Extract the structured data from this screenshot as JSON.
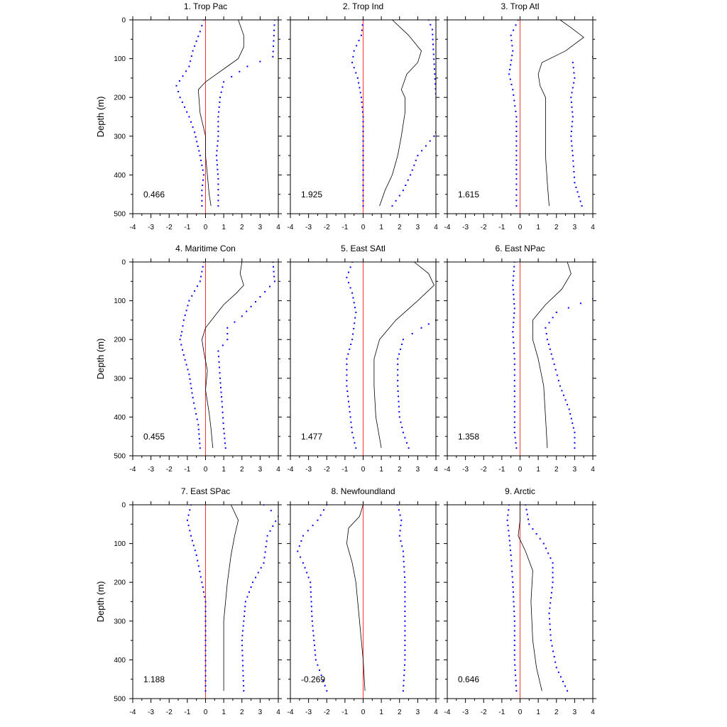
{
  "figure": {
    "ylabel": "Depth (m)",
    "xlim": [
      -4,
      4
    ],
    "ylim": [
      0,
      500
    ],
    "x_ticks": [
      "-4",
      "-3",
      "-2",
      "-1",
      "0",
      "1",
      "2",
      "3",
      "4"
    ],
    "y_ticks": [
      "0",
      "100",
      "200",
      "300",
      "400",
      "500"
    ],
    "colors": {
      "mean": "#000000",
      "bounds": "#0000ff",
      "zero": "#ff0000",
      "axes": "#000000"
    }
  },
  "chart_data": [
    {
      "type": "line",
      "title": "1. Trop Pac",
      "value_label": "0.466",
      "xlabel": "",
      "ylabel": "Depth (m)",
      "xlim": [
        -4,
        4
      ],
      "ylim": [
        0,
        500
      ],
      "y_reversed": true,
      "mean": {
        "x": [
          1.8,
          2.1,
          2.1,
          1.8,
          1.2,
          0.6,
          0.0,
          -0.4,
          -0.3,
          0.0,
          0.0,
          0.1,
          0.2,
          0.3
        ],
        "y": [
          0,
          40,
          70,
          100,
          120,
          140,
          160,
          180,
          240,
          300,
          350,
          400,
          450,
          480
        ]
      },
      "lower": {
        "x": [
          -0.1,
          -0.3,
          -0.7,
          -0.9,
          -1.6,
          -1.4,
          -0.9,
          -0.6,
          -0.3,
          -0.1,
          -0.2,
          -0.2
        ],
        "y": [
          0,
          30,
          80,
          120,
          170,
          200,
          250,
          290,
          350,
          400,
          440,
          480
        ]
      },
      "upper": {
        "x": [
          3.8,
          3.7,
          2.3,
          1.0,
          0.8,
          0.7,
          0.7,
          0.6,
          0.7,
          0.7
        ],
        "y": [
          0,
          95,
          120,
          160,
          200,
          250,
          300,
          350,
          410,
          480
        ]
      }
    },
    {
      "type": "line",
      "title": "2. Trop Ind",
      "value_label": "1.925",
      "xlabel": "",
      "ylabel": "Depth (m)",
      "xlim": [
        -4,
        4
      ],
      "ylim": [
        0,
        500
      ],
      "y_reversed": true,
      "mean": {
        "x": [
          1.6,
          2.5,
          3.2,
          3.0,
          2.4,
          2.1,
          2.3,
          2.3,
          2.1,
          1.9,
          1.6,
          1.2,
          0.9
        ],
        "y": [
          0,
          40,
          80,
          110,
          140,
          180,
          200,
          240,
          300,
          350,
          400,
          440,
          480
        ]
      },
      "lower": {
        "x": [
          0.0,
          -0.1,
          -0.5,
          -0.6,
          -0.3,
          -0.1,
          0.0,
          0.0,
          0.0,
          0.0,
          0.0
        ],
        "y": [
          0,
          40,
          80,
          110,
          150,
          200,
          250,
          300,
          350,
          400,
          480
        ]
      },
      "upper": {
        "x": [
          3.6,
          3.8,
          4.1,
          3.9,
          3.0,
          2.6,
          2.2,
          1.6
        ],
        "y": [
          0,
          25,
          280,
          300,
          350,
          400,
          440,
          480
        ]
      }
    },
    {
      "type": "line",
      "title": "3. Trop Atl",
      "value_label": "1.615",
      "xlabel": "",
      "ylabel": "Depth (m)",
      "xlim": [
        -4,
        4
      ],
      "ylim": [
        0,
        500
      ],
      "y_reversed": true,
      "mean": {
        "x": [
          2.2,
          2.8,
          3.5,
          2.5,
          1.2,
          1.0,
          1.1,
          1.4,
          1.4,
          1.4,
          1.4,
          1.5,
          1.6
        ],
        "y": [
          0,
          20,
          45,
          80,
          110,
          140,
          170,
          200,
          250,
          300,
          350,
          420,
          480
        ]
      },
      "lower": {
        "x": [
          -0.1,
          -0.5,
          -0.4,
          -0.6,
          -0.4,
          -0.2,
          -0.2,
          -0.2,
          -0.2,
          -0.2
        ],
        "y": [
          0,
          40,
          80,
          140,
          180,
          250,
          300,
          350,
          410,
          480
        ]
      },
      "upper": {
        "x": [
          4.0,
          2.9,
          3.0,
          2.8,
          2.9,
          2.8,
          2.9,
          3.0,
          3.4
        ],
        "y": [
          95,
          110,
          150,
          200,
          250,
          300,
          350,
          420,
          480
        ]
      }
    },
    {
      "type": "line",
      "title": "4. Maritime Con",
      "value_label": "0.455",
      "xlabel": "",
      "ylabel": "Depth (m)",
      "xlim": [
        -4,
        4
      ],
      "ylim": [
        0,
        500
      ],
      "y_reversed": true,
      "mean": {
        "x": [
          2.0,
          1.9,
          2.1,
          1.7,
          1.0,
          0.5,
          0.0,
          -0.2,
          -0.1,
          0.1,
          0.0,
          0.2,
          0.3,
          0.4
        ],
        "y": [
          0,
          30,
          60,
          80,
          110,
          140,
          170,
          200,
          230,
          280,
          330,
          390,
          430,
          480
        ]
      },
      "lower": {
        "x": [
          -0.1,
          -0.3,
          -0.9,
          -1.2,
          -1.3,
          -1.4,
          -1.2,
          -0.9,
          -0.7,
          -0.4,
          -0.3
        ],
        "y": [
          0,
          50,
          100,
          150,
          180,
          200,
          240,
          290,
          350,
          420,
          480
        ]
      },
      "upper": {
        "x": [
          3.7,
          3.8,
          3.0,
          2.0,
          1.2,
          1.2,
          0.7,
          0.8,
          0.9,
          1.0,
          1.1
        ],
        "y": [
          0,
          50,
          90,
          140,
          170,
          200,
          230,
          300,
          360,
          430,
          480
        ]
      }
    },
    {
      "type": "line",
      "title": "5. East SAtl",
      "value_label": "1.477",
      "xlabel": "",
      "ylabel": "Depth (m)",
      "xlim": [
        -4,
        4
      ],
      "ylim": [
        0,
        500
      ],
      "y_reversed": true,
      "mean": {
        "x": [
          2.8,
          3.6,
          3.9,
          3.0,
          1.8,
          0.9,
          0.6,
          0.6,
          0.7,
          1.0
        ],
        "y": [
          0,
          30,
          60,
          100,
          150,
          200,
          250,
          320,
          400,
          480
        ]
      },
      "lower": {
        "x": [
          -0.6,
          -0.9,
          -0.6,
          -0.4,
          -0.6,
          -0.9,
          -0.9,
          -0.7,
          -0.6,
          -0.4
        ],
        "y": [
          0,
          40,
          80,
          130,
          200,
          250,
          320,
          400,
          440,
          480
        ]
      },
      "upper": {
        "x": [
          4.0,
          3.2,
          2.2,
          1.9,
          1.9,
          2.0,
          2.2,
          2.5
        ],
        "y": [
          150,
          170,
          200,
          250,
          320,
          400,
          440,
          480
        ]
      }
    },
    {
      "type": "line",
      "title": "6. East NPac",
      "value_label": "1.358",
      "xlabel": "",
      "ylabel": "Depth (m)",
      "xlim": [
        -4,
        4
      ],
      "ylim": [
        0,
        500
      ],
      "y_reversed": true,
      "mean": {
        "x": [
          2.6,
          2.8,
          2.3,
          1.4,
          0.7,
          0.7,
          1.0,
          1.3,
          1.4,
          1.5
        ],
        "y": [
          0,
          30,
          70,
          110,
          150,
          200,
          250,
          320,
          400,
          480
        ]
      },
      "lower": {
        "x": [
          -0.3,
          -0.4,
          -0.3,
          -0.4,
          -0.3,
          -0.3,
          -0.3,
          -0.3,
          -0.2
        ],
        "y": [
          0,
          60,
          120,
          180,
          250,
          320,
          400,
          440,
          480
        ]
      },
      "upper": {
        "x": [
          4.0,
          2.0,
          1.4,
          1.5,
          1.8,
          2.2,
          2.7,
          3.0,
          3.0
        ],
        "y": [
          95,
          130,
          170,
          200,
          250,
          320,
          380,
          440,
          480
        ]
      }
    },
    {
      "type": "line",
      "title": "7. East SPac",
      "value_label": "1.188",
      "xlabel": "",
      "ylabel": "Depth (m)",
      "xlim": [
        -4,
        4
      ],
      "ylim": [
        0,
        500
      ],
      "y_reversed": true,
      "mean": {
        "x": [
          1.4,
          1.8,
          1.6,
          1.4,
          1.2,
          1.0,
          1.0,
          1.0
        ],
        "y": [
          0,
          40,
          80,
          130,
          200,
          300,
          400,
          480
        ]
      },
      "lower": {
        "x": [
          -0.8,
          -1.0,
          -0.8,
          -0.5,
          -0.2,
          0.0,
          0.0,
          0.0
        ],
        "y": [
          0,
          40,
          80,
          130,
          200,
          250,
          350,
          480
        ]
      },
      "upper": {
        "x": [
          3.2,
          4.0,
          3.4,
          3.2,
          2.6,
          2.2,
          2.0,
          2.1
        ],
        "y": [
          0,
          30,
          80,
          150,
          200,
          250,
          350,
          480
        ]
      }
    },
    {
      "type": "line",
      "title": "8. Newfoundland",
      "value_label": "-0.269",
      "xlabel": "",
      "ylabel": "Depth (m)",
      "xlim": [
        -4,
        4
      ],
      "ylim": [
        0,
        500
      ],
      "y_reversed": true,
      "mean": {
        "x": [
          0.0,
          -0.2,
          -0.8,
          -0.9,
          -0.6,
          -0.4,
          -0.2,
          0.0,
          0.1
        ],
        "y": [
          0,
          30,
          60,
          100,
          150,
          200,
          300,
          400,
          480
        ]
      },
      "lower": {
        "x": [
          -2.0,
          -2.5,
          -3.3,
          -3.6,
          -3.3,
          -2.9,
          -2.8,
          -2.6,
          -2.0
        ],
        "y": [
          0,
          40,
          80,
          120,
          150,
          200,
          300,
          400,
          480
        ]
      },
      "upper": {
        "x": [
          1.9,
          2.1,
          2.0,
          2.2,
          2.3,
          2.3,
          2.3,
          2.2
        ],
        "y": [
          0,
          40,
          80,
          120,
          200,
          300,
          400,
          480
        ]
      }
    },
    {
      "type": "line",
      "title": "9. Arctic",
      "value_label": "0.646",
      "xlabel": "",
      "ylabel": "Depth (m)",
      "xlim": [
        -4,
        4
      ],
      "ylim": [
        0,
        500
      ],
      "y_reversed": true,
      "mean": {
        "x": [
          0.0,
          0.0,
          -0.1,
          0.3,
          0.7,
          0.6,
          0.7,
          0.9,
          1.2
        ],
        "y": [
          0,
          40,
          80,
          120,
          170,
          250,
          350,
          420,
          480
        ]
      },
      "lower": {
        "x": [
          -0.6,
          -0.7,
          -0.6,
          -0.5,
          -0.4,
          -0.3,
          -0.3,
          -0.2
        ],
        "y": [
          0,
          40,
          80,
          130,
          200,
          300,
          400,
          480
        ]
      },
      "upper": {
        "x": [
          0.3,
          0.5,
          1.3,
          1.8,
          1.8,
          1.6,
          1.7,
          2.0,
          2.6
        ],
        "y": [
          0,
          50,
          100,
          150,
          200,
          280,
          350,
          420,
          480
        ]
      }
    }
  ]
}
